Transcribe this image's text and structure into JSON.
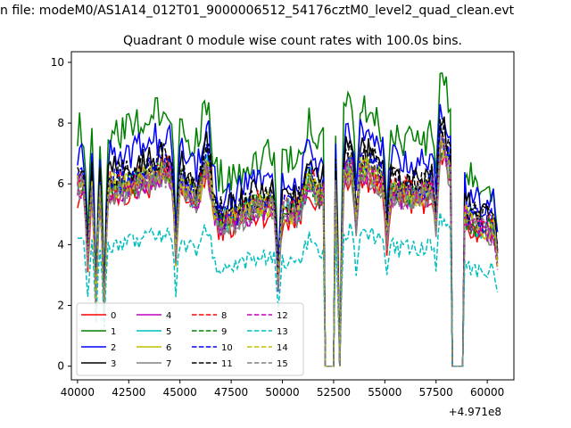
{
  "chart_data": {
    "type": "line",
    "suptitle": "n file: modeM0/AS1A14_012T01_9000006512_54176cztM0_level2_quad_clean.evt",
    "title": "Quadrant 0 module wise count rates with 100.0s bins.",
    "xlabel": "",
    "ylabel": "",
    "x_offset_label": "+4.971e8",
    "xlim": [
      39700,
      61300
    ],
    "ylim": [
      -0.45,
      10.35
    ],
    "xticks": [
      40000,
      42500,
      45000,
      47500,
      50000,
      52500,
      55000,
      57500,
      60000
    ],
    "xtick_labels": [
      "40000",
      "42500",
      "45000",
      "47500",
      "50000",
      "52500",
      "55000",
      "57500",
      "60000"
    ],
    "yticks": [
      0,
      2,
      4,
      6,
      8,
      10
    ],
    "ytick_labels": [
      "0",
      "2",
      "4",
      "6",
      "8",
      "10"
    ],
    "grid": false,
    "legend": {
      "placement": "lower-left",
      "ncol": 4
    },
    "x_range": [
      40000,
      60500
    ],
    "bin_s": 100,
    "gaps": [
      [
        52100,
        52500
      ],
      [
        58300,
        58800
      ]
    ],
    "dips": [
      [
        40500,
        2.8
      ],
      [
        40900,
        1.8
      ],
      [
        41300,
        1.5
      ],
      [
        44800,
        2.8
      ],
      [
        49800,
        2.6
      ],
      [
        52800,
        0
      ],
      [
        53600,
        3.5
      ],
      [
        55100,
        3.5
      ],
      [
        57500,
        3.5
      ],
      [
        60500,
        3.8
      ]
    ],
    "peaks": [
      [
        46300,
        1.6
      ],
      [
        51300,
        0.9
      ],
      [
        57700,
        1.5
      ],
      [
        58100,
        0.9
      ]
    ],
    "series": [
      {
        "name": "0",
        "color": "#ff0000",
        "dash": "solid",
        "level": 5.3
      },
      {
        "name": "1",
        "color": "#008000",
        "dash": "solid",
        "level": 7.3
      },
      {
        "name": "2",
        "color": "#0000ff",
        "dash": "solid",
        "level": 6.6
      },
      {
        "name": "3",
        "color": "#000000",
        "dash": "solid",
        "level": 6.1
      },
      {
        "name": "4",
        "color": "#bf00bf",
        "dash": "solid",
        "level": 5.5
      },
      {
        "name": "5",
        "color": "#00bfbf",
        "dash": "solid",
        "level": 5.6
      },
      {
        "name": "6",
        "color": "#bfbf00",
        "dash": "solid",
        "level": 5.6
      },
      {
        "name": "7",
        "color": "#808080",
        "dash": "solid",
        "level": 5.4
      },
      {
        "name": "8",
        "color": "#ff0000",
        "dash": "dashed",
        "level": 5.7
      },
      {
        "name": "9",
        "color": "#008000",
        "dash": "dashed",
        "level": 5.6
      },
      {
        "name": "10",
        "color": "#0000ff",
        "dash": "dashed",
        "level": 5.8
      },
      {
        "name": "11",
        "color": "#000000",
        "dash": "dashed",
        "level": 6.0
      },
      {
        "name": "12",
        "color": "#bf00bf",
        "dash": "dashed",
        "level": 5.5
      },
      {
        "name": "13",
        "color": "#00bfbf",
        "dash": "dashed",
        "level": 3.8
      },
      {
        "name": "14",
        "color": "#bfbf00",
        "dash": "dashed",
        "level": 5.6
      },
      {
        "name": "15",
        "color": "#808080",
        "dash": "dashed",
        "level": 5.5
      }
    ]
  }
}
